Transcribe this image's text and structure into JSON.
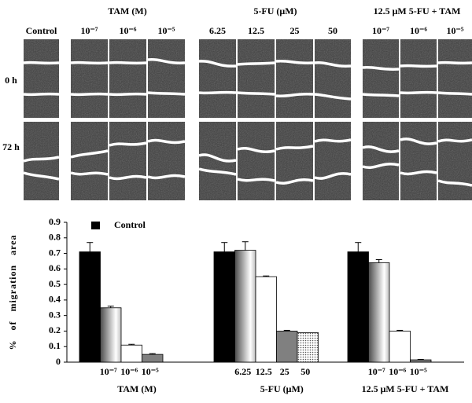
{
  "image_panel": {
    "group_titles": [
      "TAM (M)",
      "5-FU (μM)",
      "12.5 μM  5-FU + TAM"
    ],
    "column_labels": [
      "Control",
      "10⁻⁷",
      "10⁻⁶",
      "10⁻⁵",
      "6.25",
      "12.5",
      "25",
      "50",
      "10⁻⁷",
      "10⁻⁶",
      "10⁻⁵"
    ],
    "row_labels": [
      "0 h",
      "72 h"
    ]
  },
  "chart_data": {
    "type": "bar",
    "ylabel": "% of migration area",
    "legend": {
      "name": "Control",
      "color": "#000000"
    },
    "ylim": [
      0,
      0.9
    ],
    "yticks": [
      0,
      0.1,
      0.2,
      0.3,
      0.4,
      0.5,
      0.6,
      0.7,
      0.8,
      0.9
    ],
    "groups": [
      {
        "name": "TAM (M)",
        "categories": [
          null,
          "10⁻⁷",
          "10⁻⁶",
          "10⁻⁵"
        ],
        "values": [
          0.71,
          0.35,
          0.11,
          0.05
        ],
        "errors": [
          0.06,
          0.01,
          0.005,
          0.005
        ],
        "fills": [
          "#000000",
          "gradient",
          "#ffffff",
          "#808080"
        ]
      },
      {
        "name": "5-FU (μM)",
        "categories": [
          null,
          "6.25",
          "12.5",
          "25",
          "50"
        ],
        "values": [
          0.71,
          0.72,
          0.55,
          0.2,
          0.19
        ],
        "errors": [
          0.06,
          0.055,
          0.005,
          0.005,
          null
        ],
        "fills": [
          "#000000",
          "gradient",
          "#ffffff",
          "#808080",
          "dots"
        ]
      },
      {
        "name": "12.5 μM  5-FU + TAM",
        "categories": [
          null,
          "10⁻⁷",
          "10⁻⁶",
          "10⁻⁵"
        ],
        "values": [
          0.71,
          0.64,
          0.2,
          0.015
        ],
        "errors": [
          0.06,
          0.02,
          0.005,
          0.003
        ],
        "fills": [
          "#000000",
          "gradient",
          "#ffffff",
          "#808080"
        ]
      }
    ]
  }
}
